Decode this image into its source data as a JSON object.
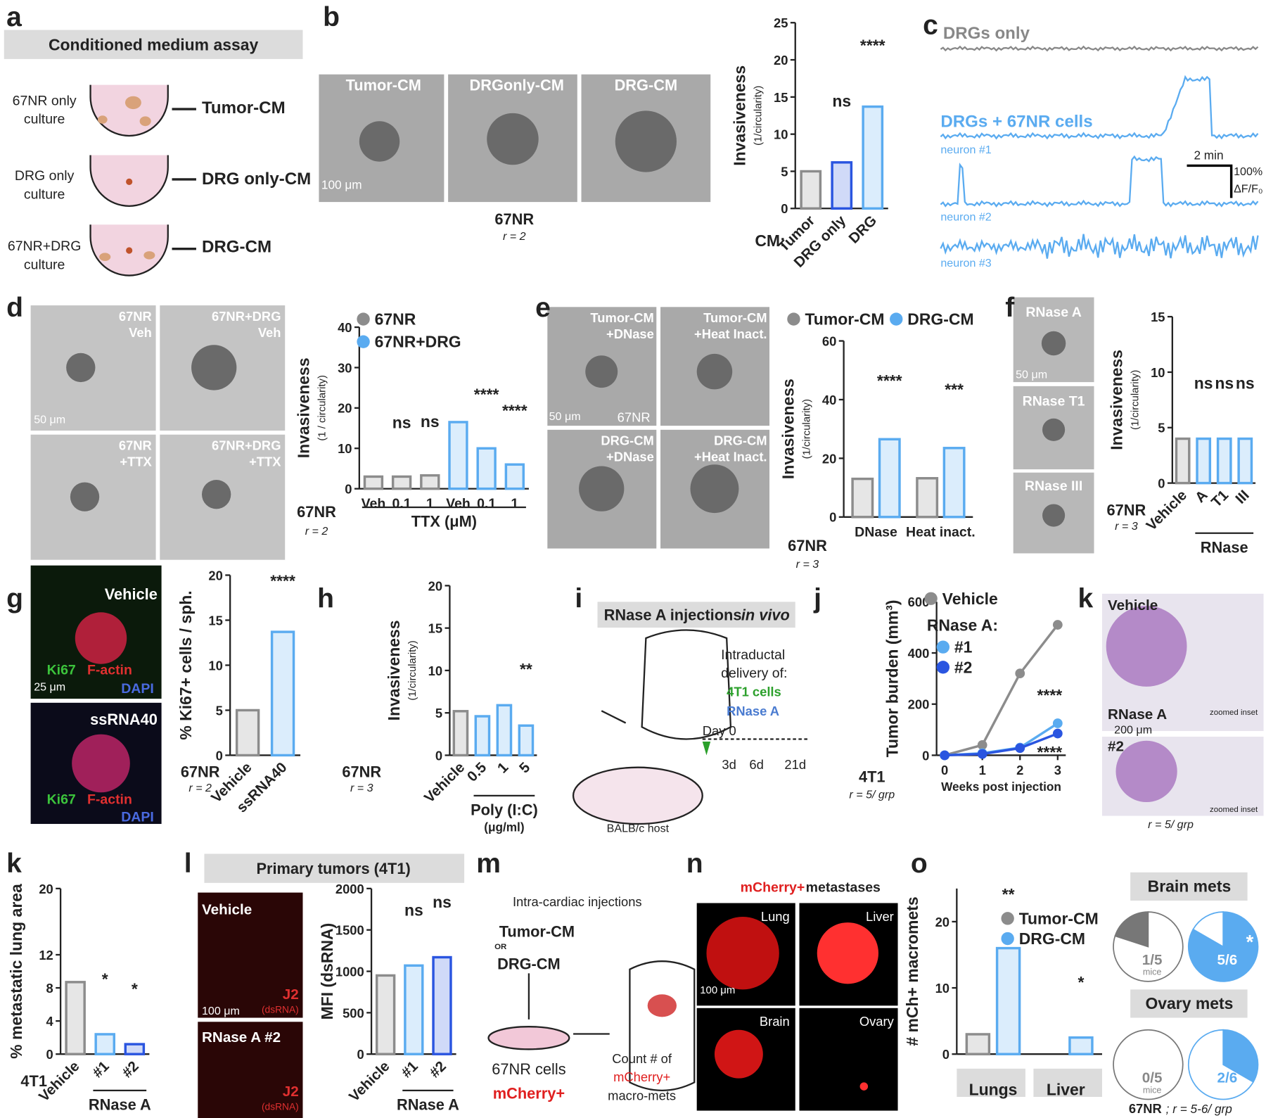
{
  "a": {
    "letter": "a",
    "title": "Conditioned medium assay",
    "rows": [
      [
        "67NR only",
        "culture",
        "Tumor-CM"
      ],
      [
        "DRG only",
        "culture",
        "DRG only-CM"
      ],
      [
        "67NR+DRG",
        "culture",
        "DRG-CM"
      ]
    ]
  },
  "b": {
    "letter": "b",
    "images": [
      "Tumor-CM",
      "DRGonly-CM",
      "DRG-CM"
    ],
    "scale": "100 μm",
    "cell": "67NR",
    "r": "r = 2"
  },
  "c": {
    "letter": "c",
    "top": "DRGs only",
    "mid": "DRGs + 67NR cells",
    "neurons": [
      "neuron #1",
      "neuron #2",
      "neuron #3"
    ],
    "scale_x": "2 min",
    "scale_y": "100%",
    "scale_y2": "ΔF/F₀"
  },
  "d": {
    "letter": "d",
    "images": [
      [
        "67NR",
        "Veh"
      ],
      [
        "67NR+DRG",
        "Veh"
      ],
      [
        "67NR",
        "+TTX"
      ],
      [
        "67NR+DRG",
        "+TTX"
      ]
    ],
    "scale": "50 μm",
    "cell": "67NR",
    "r": "r = 2"
  },
  "e": {
    "letter": "e",
    "images": [
      [
        "Tumor-CM",
        "+DNase"
      ],
      [
        "Tumor-CM",
        "+Heat Inact."
      ],
      [
        "DRG-CM",
        "+DNase"
      ],
      [
        "DRG-CM",
        "+Heat Inact."
      ]
    ],
    "inset": "67NR",
    "scale": "50 μm",
    "cell": "67NR",
    "r": "r = 3"
  },
  "f": {
    "letter": "f",
    "images": [
      "RNase A",
      "RNase T1",
      "RNase III"
    ],
    "scale": "50 μm",
    "cell": "67NR",
    "r": "r = 3"
  },
  "g": {
    "letter": "g",
    "images": [
      [
        "Vehicle",
        "Ki67",
        "F-actin",
        "DAPI"
      ],
      [
        "ssRNA40",
        "Ki67",
        "F-actin",
        "DAPI"
      ]
    ],
    "scale": "25 μm",
    "cell": "67NR",
    "r": "r = 2"
  },
  "h": {
    "letter": "h",
    "cell": "67NR",
    "r": "r = 3"
  },
  "i": {
    "letter": "i",
    "title": "RNase A injections",
    "title_italic": "in vivo",
    "delivery": [
      "Intraductal",
      "delivery of:"
    ],
    "items": [
      "4T1 cells",
      "RNase A"
    ],
    "days": [
      "Day 0",
      "3d",
      "6d",
      "21d"
    ],
    "host": "BALB/c host"
  },
  "j": {
    "letter": "j",
    "cell": "4T1",
    "r": "r = 5/ grp"
  },
  "k_img": {
    "letter": "k",
    "images": [
      "Vehicle",
      "RNase A",
      "#2"
    ],
    "scale": "200 μm",
    "inset": "zoomed inset",
    "r": "r = 5/ grp"
  },
  "k": {
    "letter": "k",
    "cell": "4T1"
  },
  "l": {
    "letter": "l",
    "title": "Primary tumors (4T1)",
    "images": [
      [
        "Vehicle",
        "J2",
        "(dsRNA)"
      ],
      [
        "RNase A #2",
        "J2",
        "(dsRNA)"
      ]
    ],
    "scale": "100 μm"
  },
  "m": {
    "letter": "m",
    "title": "Intra-cardiac injections",
    "cm": [
      "Tumor-CM",
      "OR",
      "DRG-CM"
    ],
    "cells": [
      "67NR cells",
      "mCherry+"
    ],
    "count": [
      "Count # of",
      "mCherry+",
      "macro-mets"
    ]
  },
  "n": {
    "letter": "n",
    "title_red": "mCherry+",
    "title": "metastases",
    "images": [
      "Lung",
      "Liver",
      "Brain",
      "Ovary"
    ],
    "scale": "100 μm"
  },
  "o": {
    "letter": "o",
    "brain": "Brain mets",
    "ovary": "Ovary mets",
    "footer": "67NR",
    "footer_r": "; r = 5-6/ grp"
  },
  "chart_data": [
    {
      "type": "bar",
      "ylabel": "Invasiveness",
      "ylabel_sub": "(1/circularity)",
      "x_prefix": "CM:",
      "categories": [
        "Tumor",
        "DRG only",
        "DRG"
      ],
      "values": [
        5,
        6.2,
        13.7
      ],
      "colors": [
        "#8c8c8c",
        "#2a55e0",
        "#5aabf0"
      ],
      "annotations": [
        null,
        "ns",
        "****"
      ],
      "ylim": [
        0,
        25
      ],
      "yticks": [
        0,
        5,
        10,
        15,
        20,
        25
      ]
    },
    {
      "type": "bar",
      "ylabel": "Invasiveness",
      "ylabel_sub": "(1 / circularity)",
      "categories": [
        "Veh",
        "0.1",
        "1",
        "Veh",
        "0.1",
        "1"
      ],
      "series": [
        {
          "name": "67NR",
          "color": "#8c8c8c",
          "values": [
            3,
            3,
            3.3,
            null,
            null,
            null
          ],
          "annotations": [
            null,
            "ns",
            "ns",
            null,
            null,
            null
          ]
        },
        {
          "name": "67NR+DRG",
          "color": "#5aabf0",
          "values": [
            null,
            null,
            null,
            16.5,
            10,
            6
          ],
          "annotations": [
            null,
            null,
            null,
            null,
            "****",
            "****"
          ]
        }
      ],
      "xgroup": "TTX (μM)",
      "ylim": [
        0,
        40
      ],
      "yticks": [
        0,
        10,
        20,
        30,
        40
      ]
    },
    {
      "type": "bar",
      "ylabel": "Invasiveness",
      "ylabel_sub": "(1/circularity)",
      "categories": [
        "DNase",
        "Heat inact."
      ],
      "series": [
        {
          "name": "Tumor-CM",
          "color": "#8c8c8c",
          "values": [
            13,
            13.2
          ]
        },
        {
          "name": "DRG-CM",
          "color": "#5aabf0",
          "values": [
            26.5,
            23.5
          ],
          "annotations": [
            "****",
            "***"
          ]
        }
      ],
      "ylim": [
        0,
        60
      ],
      "yticks": [
        0,
        20,
        40,
        60
      ]
    },
    {
      "type": "bar",
      "ylabel": "Invasiveness",
      "ylabel_sub": "(1/circularity)",
      "categories": [
        "Vehicle",
        "A",
        "T1",
        "III"
      ],
      "values": [
        4,
        4,
        4,
        4
      ],
      "colors": [
        "#8c8c8c",
        "#5aabf0",
        "#5aabf0",
        "#5aabf0"
      ],
      "annotations": [
        null,
        "ns",
        "ns",
        "ns"
      ],
      "xgroup": "RNase",
      "ylim": [
        0,
        15
      ],
      "yticks": [
        0,
        5,
        10,
        15
      ]
    },
    {
      "type": "bar",
      "ylabel": "% Ki67+ cells / sph.",
      "categories": [
        "Vehicle",
        "ssRNA40"
      ],
      "values": [
        5,
        13.7
      ],
      "colors": [
        "#8c8c8c",
        "#5aabf0"
      ],
      "annotations": [
        null,
        "****"
      ],
      "ylim": [
        0,
        20
      ],
      "yticks": [
        0,
        5,
        10,
        15,
        20
      ]
    },
    {
      "type": "bar",
      "ylabel": "Invasiveness",
      "ylabel_sub": "(1/circularity)",
      "categories": [
        "Vehicle",
        "0.5",
        "1",
        "5"
      ],
      "values": [
        5.2,
        4.6,
        5.9,
        3.5
      ],
      "colors": [
        "#8c8c8c",
        "#5aabf0",
        "#5aabf0",
        "#5aabf0"
      ],
      "annotations": [
        null,
        null,
        null,
        "**"
      ],
      "xgroup": "Poly (I:C)",
      "xgroup_sub": "(μg/ml)",
      "ylim": [
        0,
        20
      ],
      "yticks": [
        0,
        5,
        10,
        15,
        20
      ]
    },
    {
      "type": "line",
      "ylabel": "Tumor burden (mm³)",
      "xlabel": "Weeks post injection",
      "legend_heading": "RNase A:",
      "x": [
        0,
        1,
        2,
        3
      ],
      "series": [
        {
          "name": "Vehicle",
          "color": "#8c8c8c",
          "values": [
            0,
            40,
            320,
            510
          ]
        },
        {
          "name": "#1",
          "color": "#5aabf0",
          "values": [
            0,
            8,
            30,
            125
          ],
          "annotation": "****"
        },
        {
          "name": "#2",
          "color": "#2a55e0",
          "values": [
            0,
            5,
            28,
            85
          ],
          "annotation": "****"
        }
      ],
      "xlim": [
        0,
        3
      ],
      "xticks": [
        0,
        1,
        2,
        3
      ],
      "ylim": [
        0,
        600
      ],
      "yticks": [
        0,
        200,
        400,
        600
      ]
    },
    {
      "type": "bar",
      "ylabel": "% metastatic lung area",
      "categories": [
        "Vehicle",
        "#1",
        "#2"
      ],
      "values": [
        8.7,
        2.4,
        1.2
      ],
      "colors": [
        "#8c8c8c",
        "#5aabf0",
        "#2a55e0"
      ],
      "annotations": [
        null,
        "*",
        "*"
      ],
      "xgroup": "RNase A",
      "ylim": [
        0,
        20
      ],
      "yticks": [
        0,
        4,
        8,
        12,
        20
      ]
    },
    {
      "type": "bar",
      "ylabel": "MFI (dsRNA)",
      "categories": [
        "Vehicle",
        "#1",
        "#2"
      ],
      "values": [
        950,
        1070,
        1170
      ],
      "colors": [
        "#8c8c8c",
        "#5aabf0",
        "#2a55e0"
      ],
      "annotations": [
        null,
        "ns",
        "ns"
      ],
      "xgroup": "RNase A",
      "ylim": [
        0,
        2000
      ],
      "yticks": [
        0,
        500,
        1000,
        1500,
        2000
      ]
    },
    {
      "type": "bar",
      "ylabel": "# mCh+ macromets",
      "categories": [
        "Lungs",
        "Liver"
      ],
      "series": [
        {
          "name": "Tumor-CM",
          "color": "#8c8c8c",
          "values": [
            3,
            0
          ]
        },
        {
          "name": "DRG-CM",
          "color": "#5aabf0",
          "values": [
            16,
            2.5
          ],
          "annotations": [
            "**",
            "*"
          ]
        }
      ],
      "ylim": [
        0,
        25
      ],
      "yticks": [
        0,
        10,
        20
      ]
    },
    {
      "type": "pie",
      "values": [
        1,
        4
      ],
      "colors": [
        "#777777",
        "#ffffff"
      ],
      "label": "1/5",
      "sublabel": "mice"
    },
    {
      "type": "pie",
      "values": [
        5,
        1
      ],
      "colors": [
        "#5aabf0",
        "#ffffff"
      ],
      "label": "5/6",
      "annotation": "*"
    },
    {
      "type": "pie",
      "values": [
        0,
        5
      ],
      "colors": [
        "#777777",
        "#ffffff"
      ],
      "label": "0/5",
      "sublabel": "mice"
    },
    {
      "type": "pie",
      "values": [
        2,
        4
      ],
      "colors": [
        "#5aabf0",
        "#ffffff"
      ],
      "label": "2/6"
    }
  ]
}
